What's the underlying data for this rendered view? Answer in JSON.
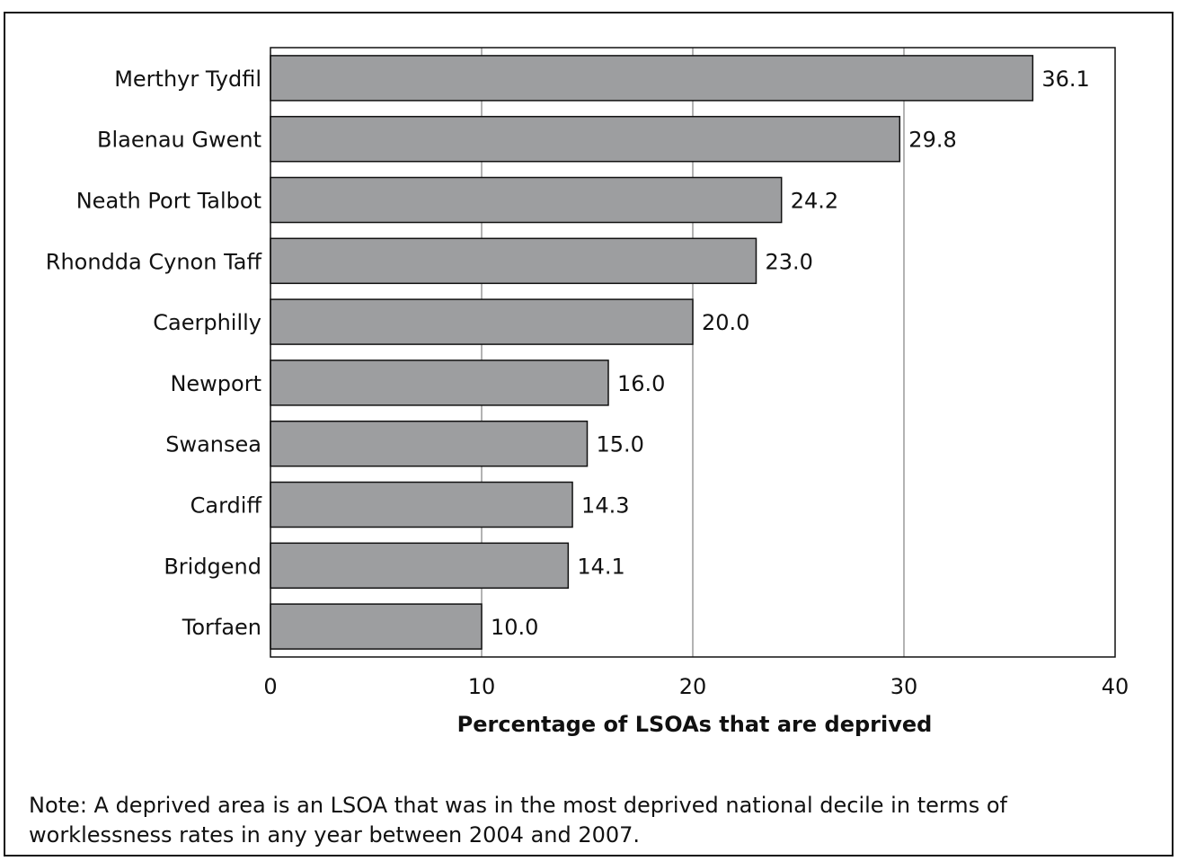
{
  "chart_data": {
    "type": "bar",
    "orientation": "horizontal",
    "categories": [
      "Merthyr Tydfil",
      "Blaenau Gwent",
      "Neath Port Talbot",
      "Rhondda Cynon Taff",
      "Caerphilly",
      "Newport",
      "Swansea",
      "Cardiff",
      "Bridgend",
      "Torfaen"
    ],
    "values": [
      36.1,
      29.8,
      24.2,
      23.0,
      20.0,
      16.0,
      15.0,
      14.3,
      14.1,
      10.0
    ],
    "value_labels": [
      "36.1",
      "29.8",
      "24.2",
      "23.0",
      "20.0",
      "16.0",
      "15.0",
      "14.3",
      "14.1",
      "10.0"
    ],
    "xlabel": "Percentage of LSOAs that are deprived",
    "ylabel": "",
    "title": "",
    "xlim": [
      0,
      40
    ],
    "xticks": [
      0,
      10,
      20,
      30,
      40
    ],
    "grid": "vertical",
    "colors": {
      "bar": "#9d9ea0",
      "bar_edge": "#111111",
      "grid": "#8a8a8a",
      "axis": "#111111"
    }
  },
  "note": "Note: A deprived area is an LSOA that was in the most deprived national decile in terms of worklessness rates in any year between 2004 and 2007."
}
